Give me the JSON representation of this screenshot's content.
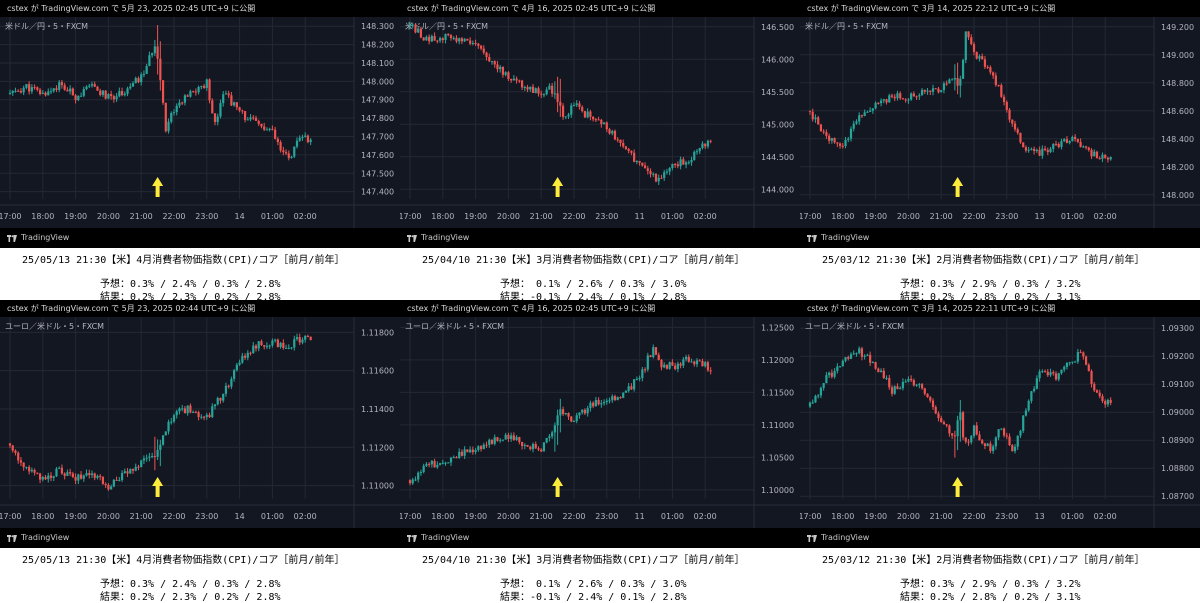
{
  "colors": {
    "background": "#131722",
    "grid": "#232834",
    "up": "#26a69a",
    "down": "#ef5350",
    "arrow": "#ffeb3b",
    "axis_text": "#b2b5be",
    "info_bg": "#ffffff"
  },
  "panels": [
    {
      "header": "cstex が TradingView.com で 5月 23, 2025 02:45 UTC+9 に公開",
      "symbol": "米ドル／円・5・FXCM",
      "brand": "TradingView",
      "info": {
        "line1": "25/05/13  21:30【米】4月消費者物価指数(CPI)/コア［前月/前年］",
        "forecast": "予想：0.3% / 2.4% / 0.3% / 2.8%",
        "result": "結果：0.2% / 2.3% / 0.2% / 2.8%"
      }
    },
    {
      "header": "cstex が TradingView.com で 4月 16, 2025 02:45 UTC+9 に公開",
      "symbol": "米ドル／円・5・FXCM",
      "brand": "TradingView",
      "info": {
        "line1": "25/04/10  21:30【米】3月消費者物価指数(CPI)/コア［前月/前年］",
        "forecast": "予想： 0.1% / 2.6% / 0.3% / 3.0%",
        "result": "結果：-0.1% / 2.4% / 0.1% / 2.8%"
      }
    },
    {
      "header": "cstex が TradingView.com で 3月 14, 2025 22:12 UTC+9 に公開",
      "symbol": "米ドル／円・5・FXCM",
      "brand": "TradingView",
      "info": {
        "line1": "25/03/12  21:30【米】2月消費者物価指数(CPI)/コア［前月/前年］",
        "forecast": "予想：0.3% / 2.9% / 0.3% / 3.2%",
        "result": "結果：0.2% / 2.8% / 0.2% / 3.1%"
      }
    },
    {
      "header": "cstex が TradingView.com で 5月 23, 2025 02:44 UTC+9 に公開",
      "symbol": "ユーロ／米ドル・5・FXCM",
      "brand": "TradingView",
      "info": {
        "line1": "25/05/13  21:30【米】4月消費者物価指数(CPI)/コア［前月/前年］",
        "forecast": "予想：0.3% / 2.4% / 0.3% / 2.8%",
        "result": "結果：0.2% / 2.3% / 0.2% / 2.8%"
      }
    },
    {
      "header": "cstex が TradingView.com で 4月 16, 2025 02:45 UTC+9 に公開",
      "symbol": "ユーロ／米ドル・5・FXCM",
      "brand": "TradingView",
      "info": {
        "line1": "25/04/10  21:30【米】3月消費者物価指数(CPI)/コア［前月/前年］",
        "forecast": "予想： 0.1% / 2.6% / 0.3% / 3.0%",
        "result": "結果：-0.1% / 2.4% / 0.1% / 2.8%"
      }
    },
    {
      "header": "cstex が TradingView.com で 3月 14, 2025 22:11 UTC+9 に公開",
      "symbol": "ユーロ／米ドル・5・FXCM",
      "brand": "TradingView",
      "info": {
        "line1": "25/03/12  21:30【米】2月消費者物価指数(CPI)/コア［前月/前年］",
        "forecast": "予想：0.3% / 2.9% / 0.3% / 3.2%",
        "result": "結果：0.2% / 2.8% / 0.2% / 3.1%"
      }
    }
  ],
  "chart_data": [
    {
      "type": "candlestick",
      "title": "米ドル／円・5・FXCM",
      "x_ticks": [
        "17:00",
        "18:00",
        "19:00",
        "20:00",
        "21:00",
        "22:00",
        "23:00",
        "14",
        "01:00",
        "02:00"
      ],
      "y_ticks": [
        "148.300",
        "148.200",
        "148.100",
        "148.000",
        "147.900",
        "147.800",
        "147.700",
        "147.600",
        "147.500",
        "147.400"
      ],
      "ylim": [
        147.36,
        148.35
      ],
      "event_x": "21:30",
      "close_path": [
        [
          17.0,
          147.93
        ],
        [
          17.5,
          147.97
        ],
        [
          18.0,
          147.93
        ],
        [
          18.5,
          147.98
        ],
        [
          19.0,
          147.92
        ],
        [
          19.5,
          147.97
        ],
        [
          20.0,
          147.91
        ],
        [
          20.5,
          147.95
        ],
        [
          21.0,
          148.02
        ],
        [
          21.25,
          148.12
        ],
        [
          21.45,
          148.22
        ],
        [
          21.55,
          148.07
        ],
        [
          21.62,
          147.95
        ],
        [
          21.75,
          147.75
        ],
        [
          22.0,
          147.85
        ],
        [
          22.5,
          147.93
        ],
        [
          23.0,
          147.99
        ],
        [
          23.25,
          147.77
        ],
        [
          23.5,
          147.95
        ],
        [
          24.0,
          147.83
        ],
        [
          24.5,
          147.77
        ],
        [
          25.0,
          147.72
        ],
        [
          25.25,
          147.62
        ],
        [
          25.5,
          147.58
        ],
        [
          25.75,
          147.66
        ],
        [
          26.0,
          147.7
        ],
        [
          26.2,
          147.66
        ]
      ]
    },
    {
      "type": "candlestick",
      "title": "米ドル／円・5・FXCM",
      "x_ticks": [
        "17:00",
        "18:00",
        "19:00",
        "20:00",
        "21:00",
        "22:00",
        "23:00",
        "11",
        "01:00",
        "02:00"
      ],
      "y_ticks": [
        "146.500",
        "146.000",
        "145.500",
        "145.000",
        "144.500",
        "144.000"
      ],
      "ylim": [
        143.85,
        146.65
      ],
      "event_x": "21:30",
      "close_path": [
        [
          17.0,
          146.52
        ],
        [
          17.5,
          146.3
        ],
        [
          18.0,
          146.35
        ],
        [
          18.5,
          146.28
        ],
        [
          19.0,
          146.2
        ],
        [
          19.5,
          145.95
        ],
        [
          20.0,
          145.75
        ],
        [
          20.5,
          145.55
        ],
        [
          21.0,
          145.5
        ],
        [
          21.25,
          145.55
        ],
        [
          21.5,
          145.38
        ],
        [
          21.7,
          145.1
        ],
        [
          22.0,
          145.3
        ],
        [
          22.5,
          145.1
        ],
        [
          23.0,
          144.95
        ],
        [
          23.5,
          144.7
        ],
        [
          24.0,
          144.35
        ],
        [
          24.5,
          144.15
        ],
        [
          25.0,
          144.35
        ],
        [
          25.5,
          144.45
        ],
        [
          26.0,
          144.7
        ],
        [
          26.2,
          144.75
        ]
      ]
    },
    {
      "type": "candlestick",
      "title": "米ドル／円・5・FXCM",
      "x_ticks": [
        "17:00",
        "18:00",
        "19:00",
        "20:00",
        "21:00",
        "22:00",
        "23:00",
        "13",
        "01:00",
        "02:00"
      ],
      "y_ticks": [
        "149.200",
        "149.000",
        "148.800",
        "148.600",
        "148.400",
        "148.200",
        "148.000"
      ],
      "ylim": [
        147.97,
        149.27
      ],
      "event_x": "21:30",
      "close_path": [
        [
          17.0,
          148.6
        ],
        [
          17.5,
          148.4
        ],
        [
          18.0,
          148.35
        ],
        [
          18.5,
          148.55
        ],
        [
          19.0,
          148.65
        ],
        [
          19.5,
          148.7
        ],
        [
          20.0,
          148.7
        ],
        [
          20.5,
          148.75
        ],
        [
          21.0,
          148.75
        ],
        [
          21.4,
          148.85
        ],
        [
          21.55,
          148.75
        ],
        [
          21.65,
          148.9
        ],
        [
          21.75,
          149.15
        ],
        [
          22.0,
          149.0
        ],
        [
          22.3,
          148.95
        ],
        [
          22.6,
          148.85
        ],
        [
          23.0,
          148.6
        ],
        [
          23.5,
          148.35
        ],
        [
          24.0,
          148.3
        ],
        [
          24.5,
          148.35
        ],
        [
          25.0,
          148.4
        ],
        [
          25.5,
          148.3
        ],
        [
          26.0,
          148.25
        ],
        [
          26.2,
          148.3
        ]
      ]
    },
    {
      "type": "candlestick",
      "title": "ユーロ／米ドル・5・FXCM",
      "x_ticks": [
        "17:00",
        "18:00",
        "19:00",
        "20:00",
        "21:00",
        "22:00",
        "23:00",
        "14",
        "01:00",
        "02:00"
      ],
      "y_ticks": [
        "1.11800",
        "1.11600",
        "1.11400",
        "1.11200",
        "1.11000"
      ],
      "ylim": [
        1.1093,
        1.1188
      ],
      "event_x": "21:30",
      "close_path": [
        [
          17.0,
          1.1122
        ],
        [
          17.5,
          1.1108
        ],
        [
          18.0,
          1.1103
        ],
        [
          18.5,
          1.1108
        ],
        [
          19.0,
          1.1103
        ],
        [
          19.5,
          1.1107
        ],
        [
          20.0,
          1.1099
        ],
        [
          20.5,
          1.1106
        ],
        [
          21.0,
          1.1112
        ],
        [
          21.5,
          1.1118
        ],
        [
          21.7,
          1.1128
        ],
        [
          22.0,
          1.1138
        ],
        [
          22.5,
          1.114
        ],
        [
          23.0,
          1.1135
        ],
        [
          23.5,
          1.1148
        ],
        [
          24.0,
          1.1165
        ],
        [
          24.5,
          1.1173
        ],
        [
          25.0,
          1.1175
        ],
        [
          25.5,
          1.1172
        ],
        [
          26.0,
          1.1179
        ],
        [
          26.2,
          1.1174
        ]
      ]
    },
    {
      "type": "candlestick",
      "title": "ユーロ／米ドル・5・FXCM",
      "x_ticks": [
        "17:00",
        "18:00",
        "19:00",
        "20:00",
        "21:00",
        "22:00",
        "23:00",
        "11",
        "01:00",
        "02:00"
      ],
      "y_ticks": [
        "1.12500",
        "1.12000",
        "1.11500",
        "1.11000",
        "1.10500",
        "1.10000"
      ],
      "ylim": [
        1.0986,
        1.1266
      ],
      "event_x": "21:30",
      "close_path": [
        [
          17.0,
          1.1015
        ],
        [
          17.5,
          1.1035
        ],
        [
          18.0,
          1.1045
        ],
        [
          18.5,
          1.1055
        ],
        [
          19.0,
          1.1065
        ],
        [
          19.5,
          1.1075
        ],
        [
          20.0,
          1.108
        ],
        [
          20.5,
          1.107
        ],
        [
          21.0,
          1.1065
        ],
        [
          21.4,
          1.1095
        ],
        [
          21.6,
          1.1125
        ],
        [
          22.0,
          1.1105
        ],
        [
          22.5,
          1.113
        ],
        [
          23.0,
          1.114
        ],
        [
          23.5,
          1.1148
        ],
        [
          24.0,
          1.1172
        ],
        [
          24.4,
          1.1218
        ],
        [
          24.6,
          1.1195
        ],
        [
          25.0,
          1.119
        ],
        [
          25.5,
          1.1202
        ],
        [
          26.0,
          1.1192
        ],
        [
          26.2,
          1.1182
        ]
      ]
    },
    {
      "type": "candlestick",
      "title": "ユーロ／米ドル・5・FXCM",
      "x_ticks": [
        "17:00",
        "18:00",
        "19:00",
        "20:00",
        "21:00",
        "22:00",
        "23:00",
        "13",
        "01:00",
        "02:00"
      ],
      "y_ticks": [
        "1.09300",
        "1.09200",
        "1.09100",
        "1.09000",
        "1.08900",
        "1.08800",
        "1.08700"
      ],
      "ylim": [
        1.0869,
        1.0934
      ],
      "event_x": "21:30",
      "close_path": [
        [
          17.0,
          1.0902
        ],
        [
          17.5,
          1.0912
        ],
        [
          18.0,
          1.0918
        ],
        [
          18.5,
          1.0922
        ],
        [
          19.0,
          1.0917
        ],
        [
          19.5,
          1.0908
        ],
        [
          20.0,
          1.0912
        ],
        [
          20.5,
          1.0908
        ],
        [
          21.0,
          1.0897
        ],
        [
          21.4,
          1.0891
        ],
        [
          21.55,
          1.0902
        ],
        [
          21.7,
          1.0887
        ],
        [
          22.0,
          1.0894
        ],
        [
          22.5,
          1.0886
        ],
        [
          22.8,
          1.0896
        ],
        [
          23.2,
          1.0886
        ],
        [
          23.6,
          1.0902
        ],
        [
          24.0,
          1.0914
        ],
        [
          24.5,
          1.0913
        ],
        [
          25.0,
          1.0918
        ],
        [
          25.3,
          1.0922
        ],
        [
          25.6,
          1.091
        ],
        [
          26.0,
          1.0903
        ],
        [
          26.2,
          1.0905
        ]
      ]
    }
  ]
}
